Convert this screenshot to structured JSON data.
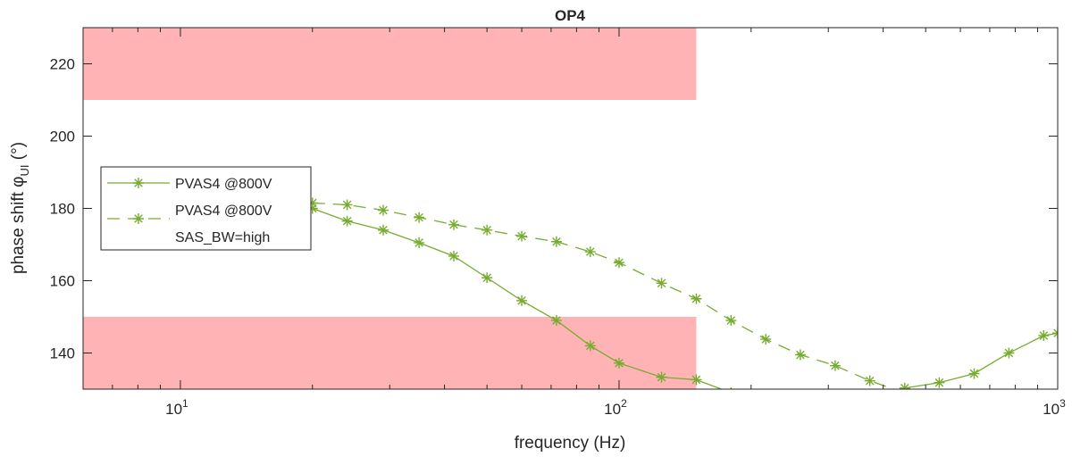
{
  "chart_data": {
    "type": "line",
    "title": "OP4",
    "xlabel": "frequency (Hz)",
    "ylabel": "phase shift φ",
    "ylabel_sub": "UI",
    "ylabel_unit": " (°)",
    "xscale": "log",
    "xlim": [
      6,
      1000
    ],
    "ylim": [
      130,
      230
    ],
    "yticks": [
      140,
      160,
      180,
      200,
      220
    ],
    "xticks": [
      {
        "base": "10",
        "exp": "1",
        "value": 10
      },
      {
        "base": "10",
        "exp": "2",
        "value": 100
      },
      {
        "base": "10",
        "exp": "3",
        "value": 1000
      }
    ],
    "grid": false,
    "legend_position": "left",
    "bands": [
      {
        "x": [
          6,
          150
        ],
        "y": [
          210,
          230
        ],
        "color": "#ffb3b5"
      },
      {
        "x": [
          6,
          150
        ],
        "y": [
          130,
          150
        ],
        "color": "#ffb3b5"
      }
    ],
    "x": [
      20,
      24,
      29,
      35,
      42,
      50,
      60,
      72,
      86,
      100,
      125,
      150,
      180,
      216,
      259,
      311,
      373,
      448,
      537,
      645,
      774,
      929,
      1000
    ],
    "series": [
      {
        "name": "PVAS4 @800V",
        "style": "solid",
        "color": "#77ac30",
        "values": [
          180,
          176.5,
          174,
          170.5,
          166.8,
          160.8,
          154.5,
          149,
          142,
          137.2,
          133.3,
          132.6,
          129,
          null,
          null,
          null,
          null,
          130.3,
          131.8,
          134.3,
          140,
          144.8,
          145.5
        ]
      },
      {
        "name": "PVAS4 @800V",
        "name_line2": "SAS_BW=high",
        "style": "dashed",
        "color": "#77ac30",
        "values": [
          181.5,
          181,
          179.5,
          177.5,
          175.5,
          174,
          172.3,
          170.8,
          168,
          165,
          159.3,
          155,
          149,
          143.8,
          139.5,
          136.5,
          132.3,
          129,
          null,
          null,
          null,
          null,
          null
        ]
      }
    ]
  }
}
